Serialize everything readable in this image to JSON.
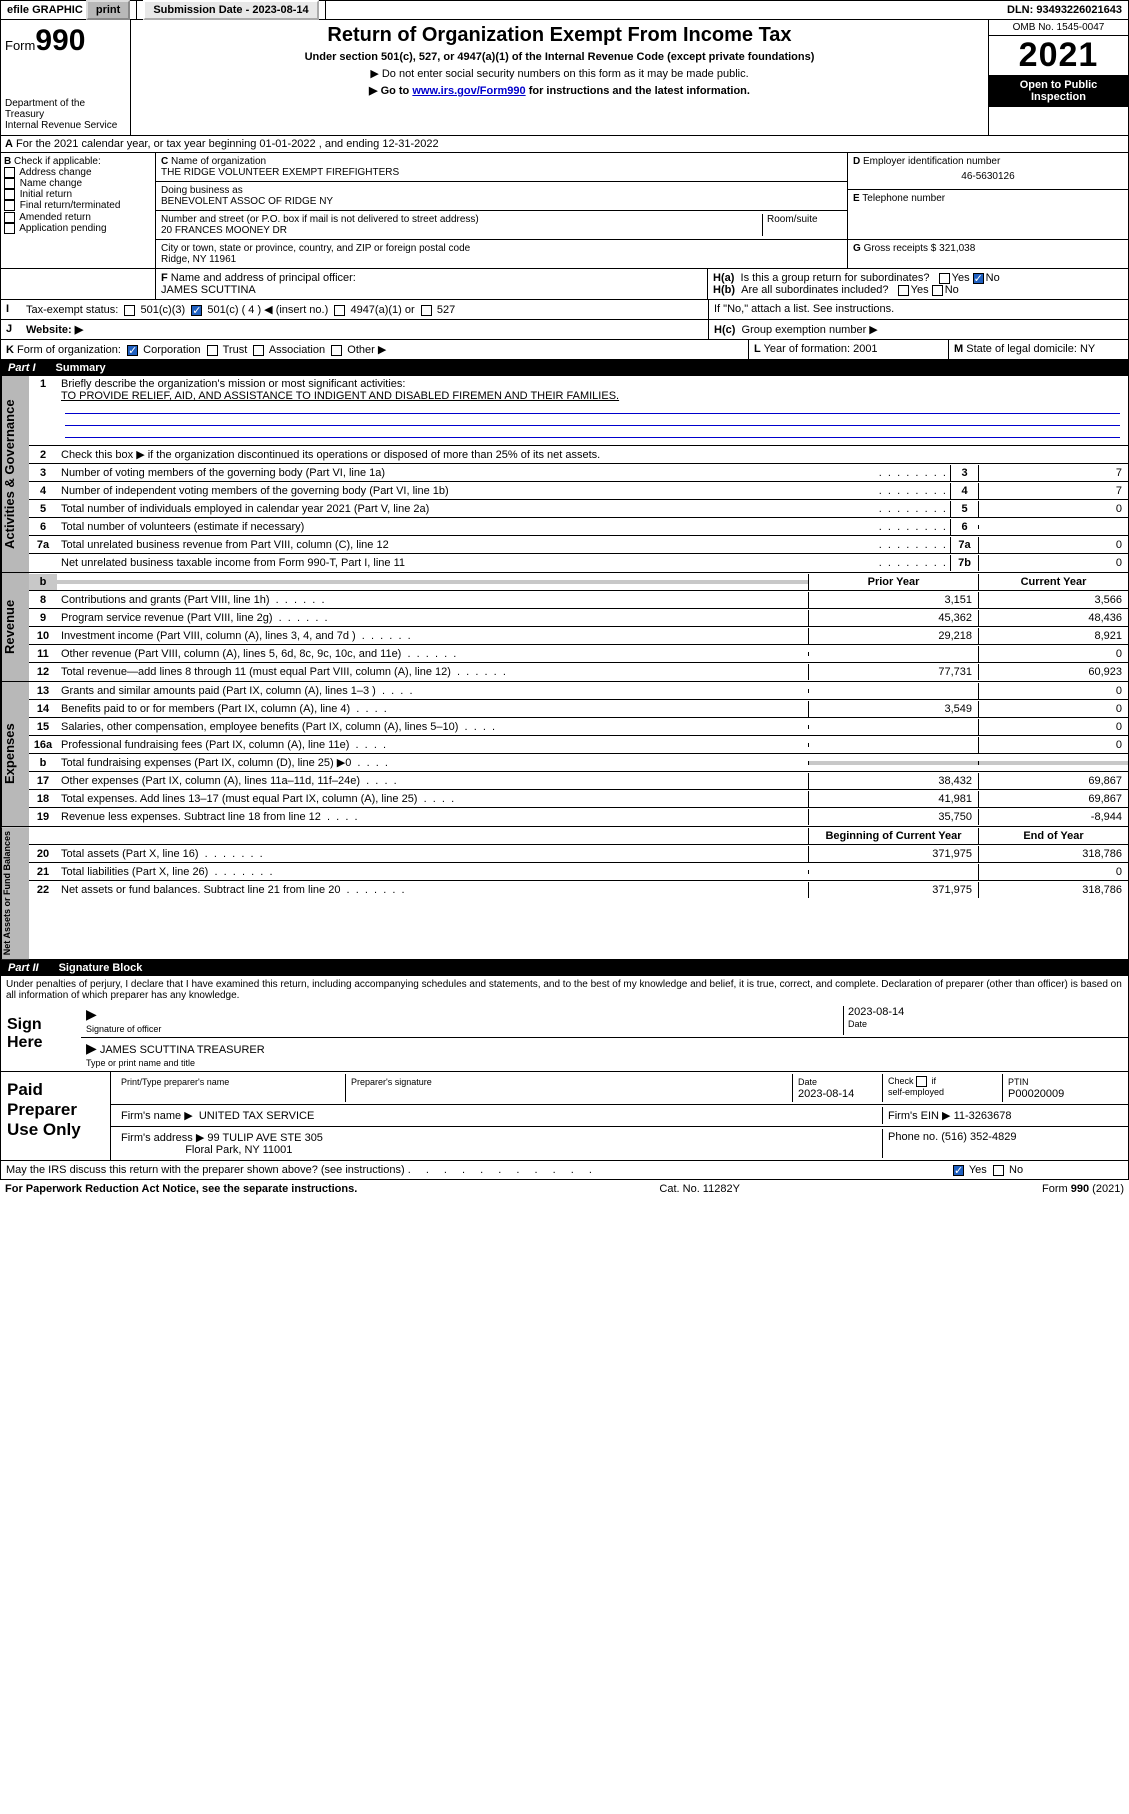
{
  "topbar": {
    "efile": "efile GRAPHIC",
    "print": "print",
    "subdate_label": "Submission Date - 2023-08-14",
    "dln": "DLN: 93493226021643"
  },
  "header": {
    "form_word": "Form",
    "form_num": "990",
    "dept": "Department of the Treasury",
    "irs": "Internal Revenue Service",
    "title": "Return of Organization Exempt From Income Tax",
    "subtitle": "Under section 501(c), 527, or 4947(a)(1) of the Internal Revenue Code (except private foundations)",
    "note1": "Do not enter social security numbers on this form as it may be made public.",
    "note2_pre": "Go to ",
    "note2_link": "www.irs.gov/Form990",
    "note2_post": " for instructions and the latest information.",
    "omb": "OMB No. 1545-0047",
    "year": "2021",
    "open": "Open to Public Inspection"
  },
  "a": {
    "text": "For the 2021 calendar year, or tax year beginning 01-01-2022   , and ending 12-31-2022"
  },
  "b": {
    "label": "Check if applicable:",
    "opts": [
      "Address change",
      "Name change",
      "Initial return",
      "Final return/terminated",
      "Amended return",
      "Application pending"
    ]
  },
  "c": {
    "name_lbl": "Name of organization",
    "name": "THE RIDGE VOLUNTEER EXEMPT FIREFIGHTERS",
    "dba_lbl": "Doing business as",
    "dba": "BENEVOLENT ASSOC OF RIDGE NY",
    "street_lbl": "Number and street (or P.O. box if mail is not delivered to street address)",
    "room_lbl": "Room/suite",
    "street": "20 FRANCES MOONEY DR",
    "city_lbl": "City or town, state or province, country, and ZIP or foreign postal code",
    "city": "Ridge, NY  11961"
  },
  "d": {
    "lbl": "Employer identification number",
    "val": "46-5630126"
  },
  "e": {
    "lbl": "Telephone number",
    "val": ""
  },
  "g": {
    "lbl": "Gross receipts $",
    "val": "321,038"
  },
  "f": {
    "lbl": "Name and address of principal officer:",
    "val": "JAMES SCUTTINA"
  },
  "h": {
    "a": "Is this a group return for subordinates?",
    "b": "Are all subordinates included?",
    "bnote": "If \"No,\" attach a list. See instructions.",
    "c": "Group exemption number ▶",
    "yes": "Yes",
    "no": "No"
  },
  "i": {
    "lbl": "Tax-exempt status:",
    "o1": "501(c)(3)",
    "o2": "501(c) ( 4 ) ◀ (insert no.)",
    "o3": "4947(a)(1) or",
    "o4": "527"
  },
  "j": {
    "lbl": "Website: ▶"
  },
  "k": {
    "lbl": "Form of organization:",
    "o1": "Corporation",
    "o2": "Trust",
    "o3": "Association",
    "o4": "Other ▶"
  },
  "l": {
    "lbl": "Year of formation:",
    "val": "2001"
  },
  "m": {
    "lbl": "State of legal domicile:",
    "val": "NY"
  },
  "part1": {
    "num": "Part I",
    "title": "Summary"
  },
  "summary": {
    "l1_lbl": "Briefly describe the organization's mission or most significant activities:",
    "l1_val": "TO PROVIDE RELIEF, AID, AND ASSISTANCE TO INDIGENT AND DISABLED FIREMEN AND THEIR FAMILIES.",
    "l2": "Check this box ▶        if the organization discontinued its operations or disposed of more than 25% of its net assets.",
    "prior": "Prior Year",
    "current": "Current Year",
    "begin": "Beginning of Current Year",
    "end": "End of Year",
    "rows_gov": [
      {
        "n": "3",
        "d": "Number of voting members of the governing body (Part VI, line 1a)",
        "box": "3",
        "v": "7"
      },
      {
        "n": "4",
        "d": "Number of independent voting members of the governing body (Part VI, line 1b)",
        "box": "4",
        "v": "7"
      },
      {
        "n": "5",
        "d": "Total number of individuals employed in calendar year 2021 (Part V, line 2a)",
        "box": "5",
        "v": "0"
      },
      {
        "n": "6",
        "d": "Total number of volunteers (estimate if necessary)",
        "box": "6",
        "v": ""
      },
      {
        "n": "7a",
        "d": "Total unrelated business revenue from Part VIII, column (C), line 12",
        "box": "7a",
        "v": "0"
      },
      {
        "n": "",
        "d": "Net unrelated business taxable income from Form 990-T, Part I, line 11",
        "box": "7b",
        "v": "0"
      }
    ],
    "rows_rev": [
      {
        "n": "8",
        "d": "Contributions and grants (Part VIII, line 1h)",
        "p": "3,151",
        "c": "3,566"
      },
      {
        "n": "9",
        "d": "Program service revenue (Part VIII, line 2g)",
        "p": "45,362",
        "c": "48,436"
      },
      {
        "n": "10",
        "d": "Investment income (Part VIII, column (A), lines 3, 4, and 7d )",
        "p": "29,218",
        "c": "8,921"
      },
      {
        "n": "11",
        "d": "Other revenue (Part VIII, column (A), lines 5, 6d, 8c, 9c, 10c, and 11e)",
        "p": "",
        "c": "0"
      },
      {
        "n": "12",
        "d": "Total revenue—add lines 8 through 11 (must equal Part VIII, column (A), line 12)",
        "p": "77,731",
        "c": "60,923"
      }
    ],
    "rows_exp": [
      {
        "n": "13",
        "d": "Grants and similar amounts paid (Part IX, column (A), lines 1–3 )",
        "p": "",
        "c": "0"
      },
      {
        "n": "14",
        "d": "Benefits paid to or for members (Part IX, column (A), line 4)",
        "p": "3,549",
        "c": "0"
      },
      {
        "n": "15",
        "d": "Salaries, other compensation, employee benefits (Part IX, column (A), lines 5–10)",
        "p": "",
        "c": "0"
      },
      {
        "n": "16a",
        "d": "Professional fundraising fees (Part IX, column (A), line 11e)",
        "p": "",
        "c": "0"
      },
      {
        "n": "b",
        "d": "Total fundraising expenses (Part IX, column (D), line 25) ▶0",
        "p": "shade",
        "c": "shade"
      },
      {
        "n": "17",
        "d": "Other expenses (Part IX, column (A), lines 11a–11d, 11f–24e)",
        "p": "38,432",
        "c": "69,867"
      },
      {
        "n": "18",
        "d": "Total expenses. Add lines 13–17 (must equal Part IX, column (A), line 25)",
        "p": "41,981",
        "c": "69,867"
      },
      {
        "n": "19",
        "d": "Revenue less expenses. Subtract line 18 from line 12",
        "p": "35,750",
        "c": "-8,944"
      }
    ],
    "rows_net": [
      {
        "n": "20",
        "d": "Total assets (Part X, line 16)",
        "p": "371,975",
        "c": "318,786"
      },
      {
        "n": "21",
        "d": "Total liabilities (Part X, line 26)",
        "p": "",
        "c": "0"
      },
      {
        "n": "22",
        "d": "Net assets or fund balances. Subtract line 21 from line 20",
        "p": "371,975",
        "c": "318,786"
      }
    ]
  },
  "vtabs": {
    "gov": "Activities & Governance",
    "rev": "Revenue",
    "exp": "Expenses",
    "net": "Net Assets or Fund Balances"
  },
  "part2": {
    "num": "Part II",
    "title": "Signature Block"
  },
  "sig": {
    "perjury": "Under penalties of perjury, I declare that I have examined this return, including accompanying schedules and statements, and to the best of my knowledge and belief, it is true, correct, and complete. Declaration of preparer (other than officer) is based on all information of which preparer has any knowledge.",
    "sign_here": "Sign Here",
    "sig_officer": "Signature of officer",
    "date": "Date",
    "date_val": "2023-08-14",
    "officer": "JAMES SCUTTINA  TREASURER",
    "type_name": "Type or print name and title",
    "paid": "Paid Preparer Use Only",
    "prep_name": "Print/Type preparer's name",
    "prep_sig": "Preparer's signature",
    "prep_date_val": "2023-08-14",
    "check_self": "Check         if self-employed",
    "ptin_lbl": "PTIN",
    "ptin": "P00020009",
    "firm_name_lbl": "Firm's name   ▶",
    "firm_name": "UNITED TAX SERVICE",
    "firm_ein_lbl": "Firm's EIN ▶",
    "firm_ein": "11-3263678",
    "firm_addr_lbl": "Firm's address ▶",
    "firm_addr1": "99 TULIP AVE STE 305",
    "firm_addr2": "Floral Park, NY  11001",
    "phone_lbl": "Phone no.",
    "phone": "(516) 352-4829",
    "discuss": "May the IRS discuss this return with the preparer shown above? (see instructions)"
  },
  "footer": {
    "pra": "For Paperwork Reduction Act Notice, see the separate instructions.",
    "cat": "Cat. No. 11282Y",
    "form": "Form 990 (2021)"
  }
}
